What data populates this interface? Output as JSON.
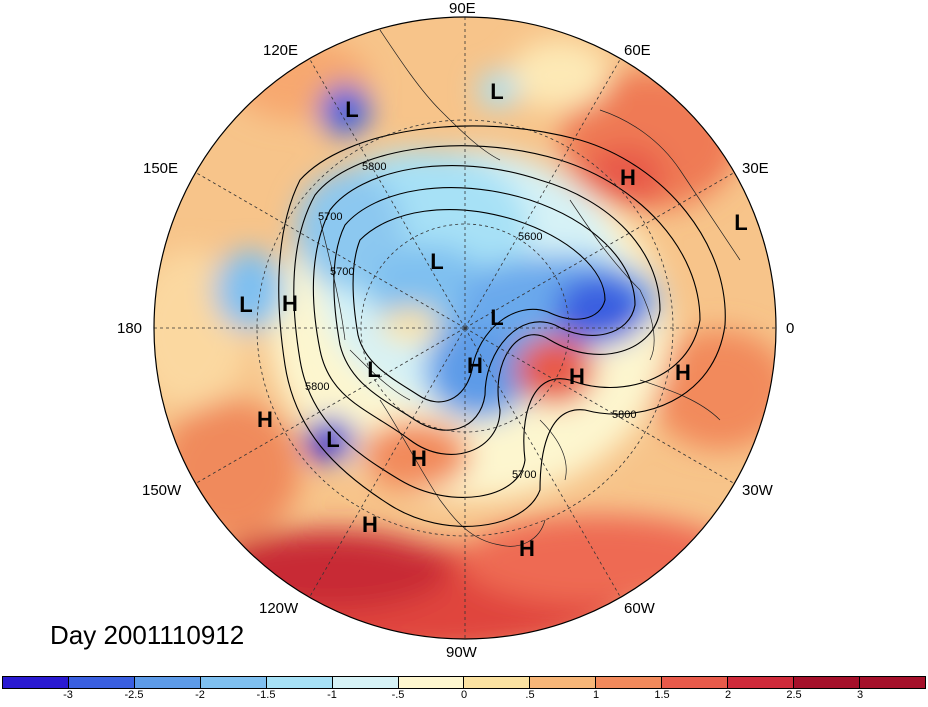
{
  "map": {
    "title": "Day 2001110912",
    "longitude_labels": [
      "90E",
      "60E",
      "30E",
      "0",
      "30W",
      "60W",
      "90W",
      "120W",
      "150W",
      "180",
      "150E",
      "120E"
    ],
    "contour_labels": [
      "5800",
      "5700",
      "5600",
      "5800",
      "5700",
      "5800",
      "5700"
    ],
    "pressure_centers": [
      "L",
      "L",
      "H",
      "L",
      "L",
      "H",
      "L",
      "L",
      "L",
      "H",
      "H",
      "H",
      "L",
      "H",
      "H",
      "H",
      "H"
    ]
  },
  "colorbar": {
    "colors": [
      "#2a1ad2",
      "#3a5fe0",
      "#5d9be8",
      "#7fc0f0",
      "#a7e1f6",
      "#d6f2f6",
      "#fdf6cf",
      "#fbe2a2",
      "#f7b678",
      "#f28a5c",
      "#e85a4a",
      "#cf2a3a",
      "#a5102a"
    ],
    "tick_labels": [
      "-3",
      "-2.5",
      "-2",
      "-1.5",
      "-1",
      "-.5",
      "0",
      ".5",
      "1",
      "1.5",
      "2",
      "2.5",
      "3"
    ]
  }
}
